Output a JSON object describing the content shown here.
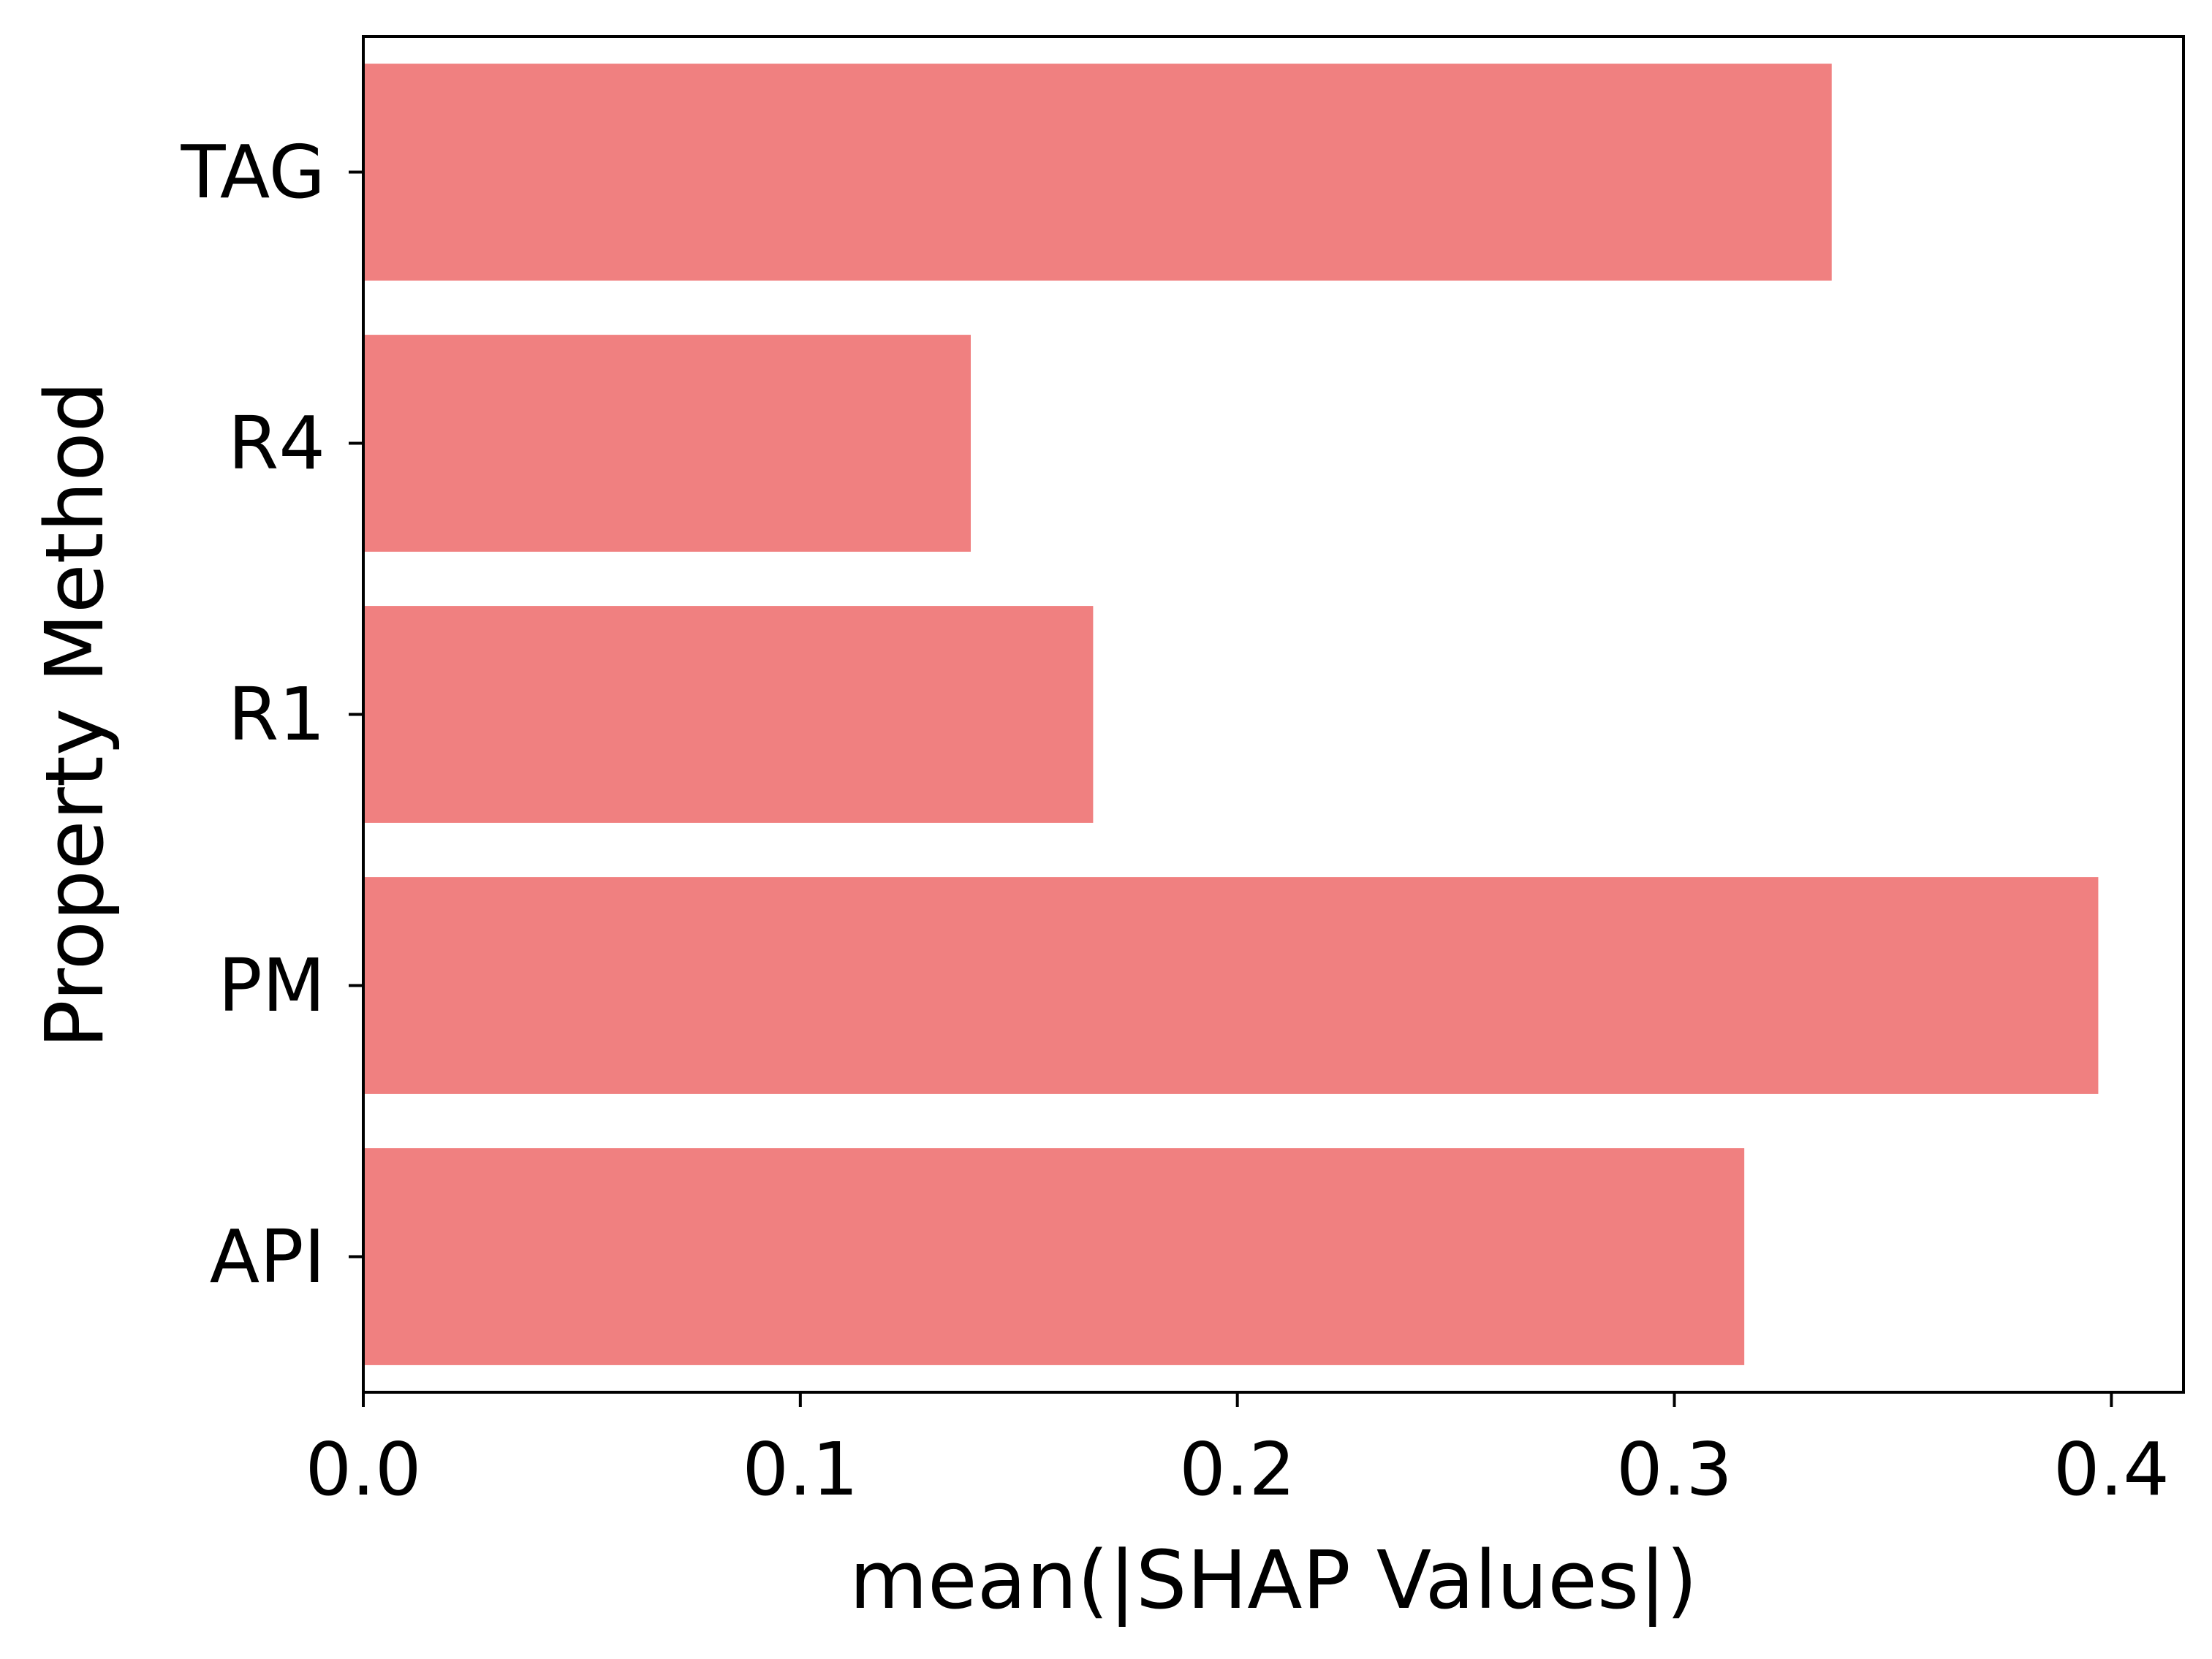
{
  "chart_data": {
    "type": "bar",
    "orientation": "horizontal",
    "categories": [
      "TAG",
      "R4",
      "R1",
      "PM",
      "API"
    ],
    "values": [
      0.336,
      0.139,
      0.167,
      0.397,
      0.316
    ],
    "xlabel": "mean(|SHAP Values|)",
    "ylabel": "Property Method",
    "xlim": [
      0,
      0.4165
    ],
    "xticks": [
      "0.0",
      "0.1",
      "0.2",
      "0.3",
      "0.4"
    ],
    "bar_color": "#f08080",
    "grid": false,
    "legend": "none"
  }
}
